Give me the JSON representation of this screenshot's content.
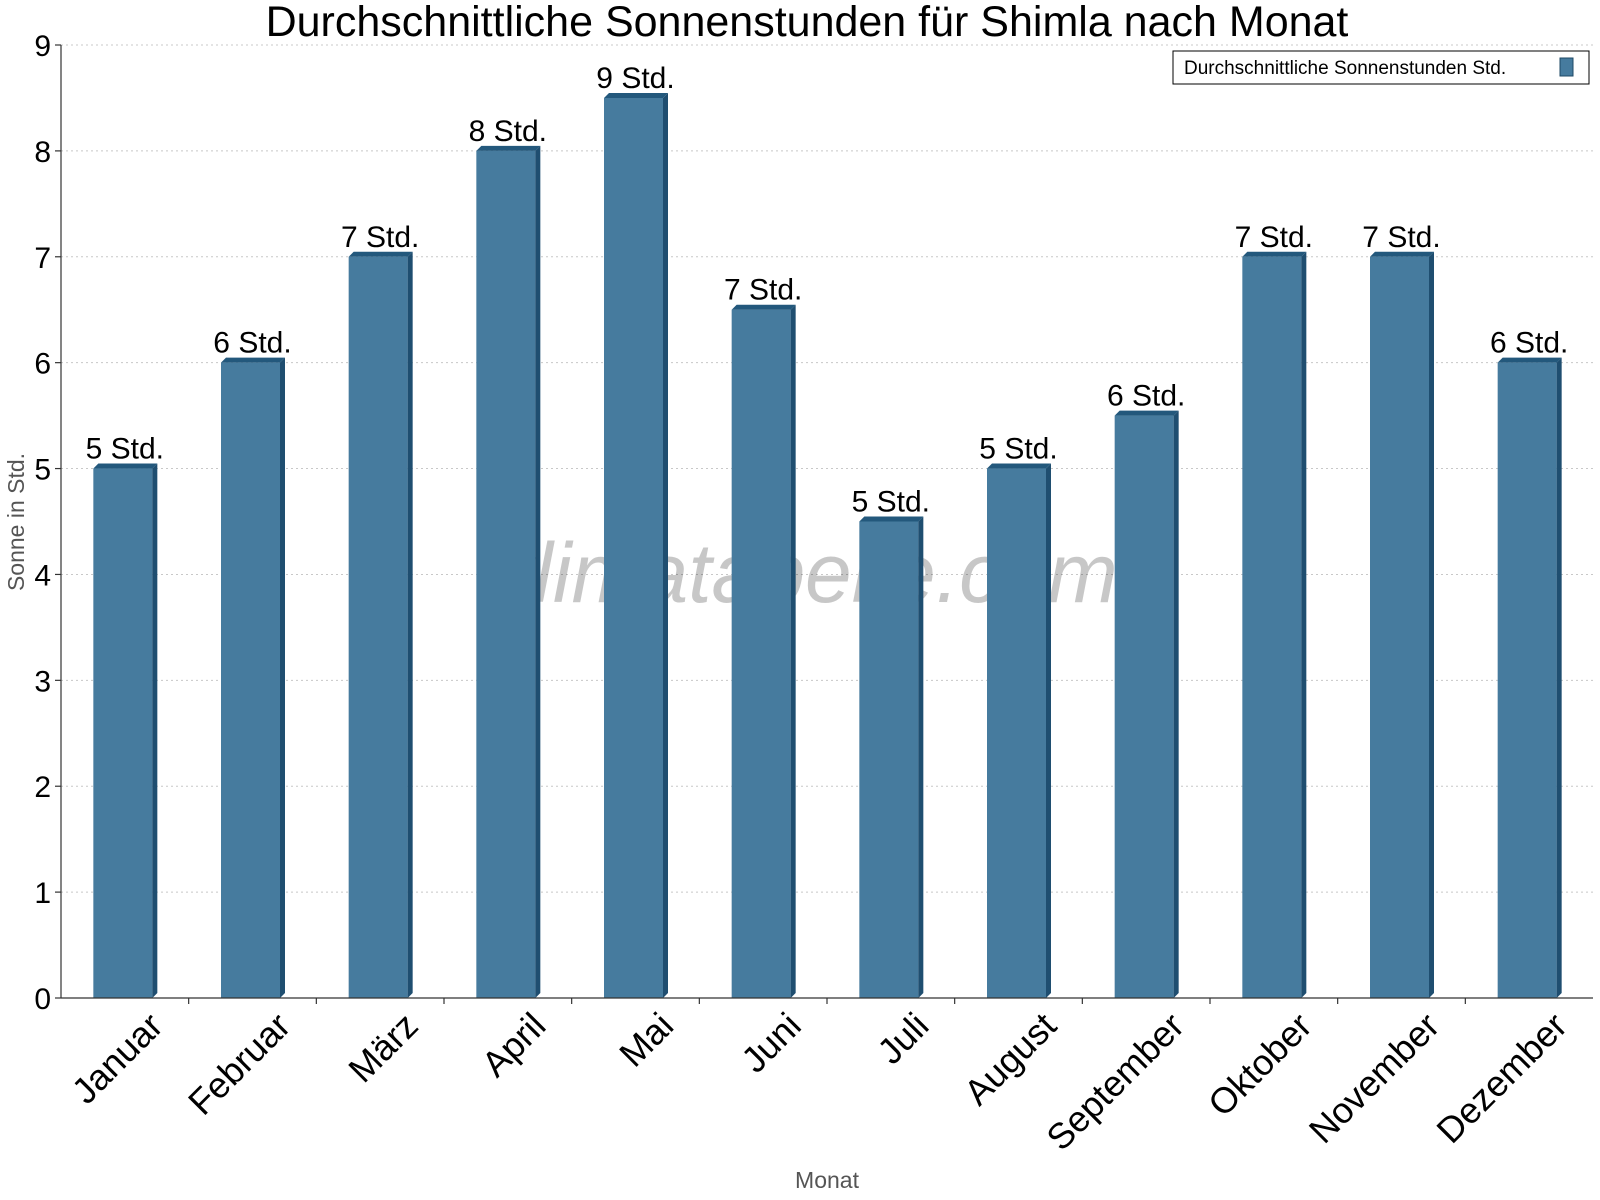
{
  "chart_data": {
    "type": "bar",
    "title": "Durchschnittliche Sonnenstunden für Shimla nach Monat",
    "xlabel": "Monat",
    "ylabel": "Sonne in Std.",
    "ylim": [
      0,
      9
    ],
    "yticks": [
      0,
      1,
      2,
      3,
      4,
      5,
      6,
      7,
      8,
      9
    ],
    "grid": true,
    "legend_position": "top-right",
    "watermark": "klimatabelle.com",
    "categories": [
      "Januar",
      "Februar",
      "März",
      "April",
      "Mai",
      "Juni",
      "Juli",
      "August",
      "September",
      "Oktober",
      "November",
      "Dezember"
    ],
    "series": [
      {
        "name": "Durchschnittliche Sonnenstunden Std.",
        "color": "#467b9e",
        "values": [
          5,
          6,
          7,
          8,
          8.5,
          6.5,
          4.5,
          5,
          5.5,
          7,
          7,
          6
        ],
        "data_labels": [
          "5 Std.",
          "6 Std.",
          "7 Std.",
          "8 Std.",
          "9 Std.",
          "7 Std.",
          "5 Std.",
          "5 Std.",
          "6 Std.",
          "7 Std.",
          "7 Std.",
          "6 Std."
        ]
      }
    ]
  }
}
